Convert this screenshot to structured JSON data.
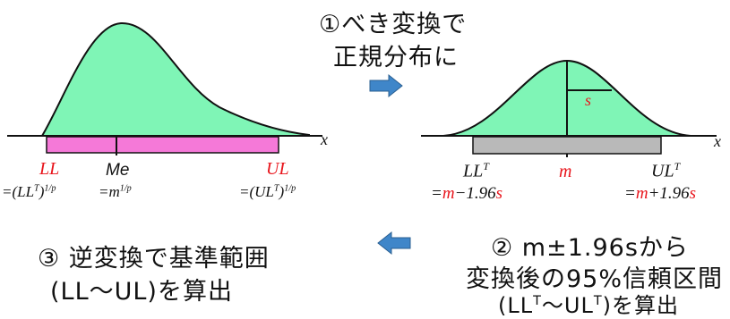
{
  "step1": {
    "line1": "①べき変換で",
    "line2": "正規分布に"
  },
  "step2": {
    "line1": "② m±1.96sから",
    "line2": "変換後の95%信頼区間",
    "line3_prefix": "(LL",
    "line3_mid": "〜UL",
    "line3_suffix": ")を算出",
    "sup": "T"
  },
  "step3": {
    "line1": "③ 逆変換で基準範囲",
    "line2": "(LL〜UL)を算出"
  },
  "left": {
    "x_axis": "x",
    "ll": "LL",
    "me": "Me",
    "ul": "UL",
    "ll_formula": "=(LL",
    "ll_formula_exp": "1/p",
    "me_formula": "=m",
    "me_formula_exp": "1/p",
    "ul_formula": "=(UL",
    "ul_formula_exp": "1/p",
    "sup_t": "T",
    "close": ")"
  },
  "right": {
    "x_axis": "x",
    "s": "s",
    "llt": "LL",
    "m": "m",
    "ult": "UL",
    "sup_t": "T",
    "llt_eq": "=",
    "llt_m": "m",
    "llt_rest": "−1.96",
    "llt_s": "s",
    "ult_eq": "=",
    "ult_m": "m",
    "ult_rest": "+1.96",
    "ult_s": "s"
  },
  "colors": {
    "curve_fill": "#7ff5b6",
    "pink_bar": "#f579d8",
    "gray_bar": "#b9b9b9",
    "arrow": "#3f86c9",
    "red": "#e8141b"
  }
}
